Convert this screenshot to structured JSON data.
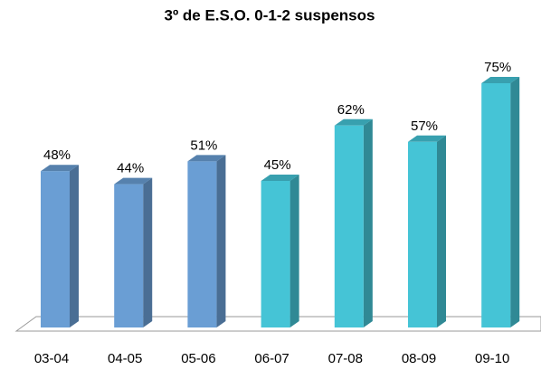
{
  "chart_data": {
    "type": "bar3d",
    "title": "3º de E.S.O.  0-1-2 suspensos",
    "categories": [
      "03-04",
      "04-05",
      "05-06",
      "06-07",
      "07-08",
      "08-09",
      "09-10"
    ],
    "values": [
      48,
      44,
      51,
      45,
      62,
      57,
      75
    ],
    "value_labels": [
      "48%",
      "44%",
      "51%",
      "45%",
      "62%",
      "57%",
      "75%"
    ],
    "colors": [
      "#6a9ed4",
      "#6a9ed4",
      "#6a9ed4",
      "#45c4d6",
      "#45c4d6",
      "#45c4d6",
      "#45c4d6"
    ]
  }
}
